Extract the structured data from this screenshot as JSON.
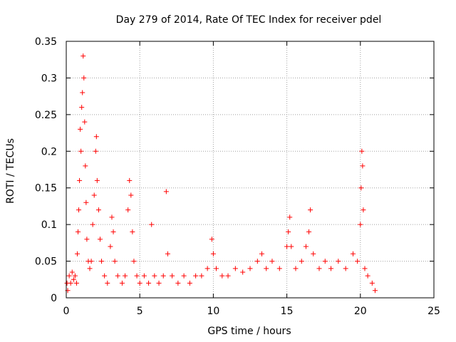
{
  "chart_data": {
    "type": "scatter",
    "title": "Day 279 of 2014, Rate Of TEC Index for receiver pdel",
    "xlabel": "GPS time / hours",
    "ylabel": "ROTI / TECUs",
    "xlim": [
      0,
      25
    ],
    "ylim": [
      0,
      0.35
    ],
    "x_ticks": [
      "0",
      "5",
      "10",
      "15",
      "20",
      "25"
    ],
    "y_ticks": [
      "0",
      "0.05",
      "0.1",
      "0.15",
      "0.2",
      "0.25",
      "0.3",
      "0.35"
    ],
    "grid": true,
    "marker": "plus",
    "color": "#ff0000",
    "series": [
      {
        "points": [
          [
            0.05,
            0.02
          ],
          [
            0.1,
            0.01
          ],
          [
            0.2,
            0.03
          ],
          [
            0.3,
            0.02
          ],
          [
            0.4,
            0.035
          ],
          [
            0.5,
            0.025
          ],
          [
            0.6,
            0.03
          ],
          [
            0.7,
            0.02
          ],
          [
            0.75,
            0.06
          ],
          [
            0.8,
            0.09
          ],
          [
            0.85,
            0.12
          ],
          [
            0.9,
            0.16
          ],
          [
            0.95,
            0.23
          ],
          [
            1.0,
            0.2
          ],
          [
            1.05,
            0.26
          ],
          [
            1.1,
            0.28
          ],
          [
            1.15,
            0.33
          ],
          [
            1.2,
            0.3
          ],
          [
            1.25,
            0.24
          ],
          [
            1.3,
            0.18
          ],
          [
            1.35,
            0.13
          ],
          [
            1.4,
            0.08
          ],
          [
            1.5,
            0.05
          ],
          [
            1.6,
            0.04
          ],
          [
            1.7,
            0.05
          ],
          [
            1.8,
            0.1
          ],
          [
            1.9,
            0.14
          ],
          [
            2.0,
            0.2
          ],
          [
            2.05,
            0.22
          ],
          [
            2.1,
            0.16
          ],
          [
            2.2,
            0.12
          ],
          [
            2.3,
            0.08
          ],
          [
            2.4,
            0.05
          ],
          [
            2.6,
            0.03
          ],
          [
            2.8,
            0.02
          ],
          [
            3.0,
            0.07
          ],
          [
            3.1,
            0.11
          ],
          [
            3.2,
            0.09
          ],
          [
            3.3,
            0.05
          ],
          [
            3.5,
            0.03
          ],
          [
            3.8,
            0.02
          ],
          [
            4.0,
            0.03
          ],
          [
            4.2,
            0.12
          ],
          [
            4.3,
            0.16
          ],
          [
            4.4,
            0.14
          ],
          [
            4.5,
            0.09
          ],
          [
            4.6,
            0.05
          ],
          [
            4.8,
            0.03
          ],
          [
            5.0,
            0.02
          ],
          [
            5.3,
            0.03
          ],
          [
            5.6,
            0.02
          ],
          [
            5.8,
            0.1
          ],
          [
            6.0,
            0.03
          ],
          [
            6.3,
            0.02
          ],
          [
            6.6,
            0.03
          ],
          [
            6.8,
            0.145
          ],
          [
            6.9,
            0.06
          ],
          [
            7.2,
            0.03
          ],
          [
            7.6,
            0.02
          ],
          [
            8.0,
            0.03
          ],
          [
            8.4,
            0.02
          ],
          [
            8.8,
            0.03
          ],
          [
            9.2,
            0.03
          ],
          [
            9.6,
            0.04
          ],
          [
            9.9,
            0.08
          ],
          [
            10.0,
            0.06
          ],
          [
            10.2,
            0.04
          ],
          [
            10.6,
            0.03
          ],
          [
            11.0,
            0.03
          ],
          [
            11.5,
            0.04
          ],
          [
            12.0,
            0.035
          ],
          [
            12.5,
            0.04
          ],
          [
            13.0,
            0.05
          ],
          [
            13.3,
            0.06
          ],
          [
            13.6,
            0.04
          ],
          [
            14.0,
            0.05
          ],
          [
            14.5,
            0.04
          ],
          [
            15.0,
            0.07
          ],
          [
            15.1,
            0.09
          ],
          [
            15.2,
            0.11
          ],
          [
            15.3,
            0.07
          ],
          [
            15.6,
            0.04
          ],
          [
            16.0,
            0.05
          ],
          [
            16.3,
            0.07
          ],
          [
            16.5,
            0.09
          ],
          [
            16.6,
            0.12
          ],
          [
            16.8,
            0.06
          ],
          [
            17.2,
            0.04
          ],
          [
            17.6,
            0.05
          ],
          [
            18.0,
            0.04
          ],
          [
            18.5,
            0.05
          ],
          [
            19.0,
            0.04
          ],
          [
            19.5,
            0.06
          ],
          [
            19.8,
            0.05
          ],
          [
            20.0,
            0.1
          ],
          [
            20.05,
            0.15
          ],
          [
            20.1,
            0.2
          ],
          [
            20.15,
            0.18
          ],
          [
            20.2,
            0.12
          ],
          [
            20.3,
            0.04
          ],
          [
            20.5,
            0.03
          ],
          [
            20.8,
            0.02
          ],
          [
            21.0,
            0.01
          ]
        ]
      }
    ]
  }
}
